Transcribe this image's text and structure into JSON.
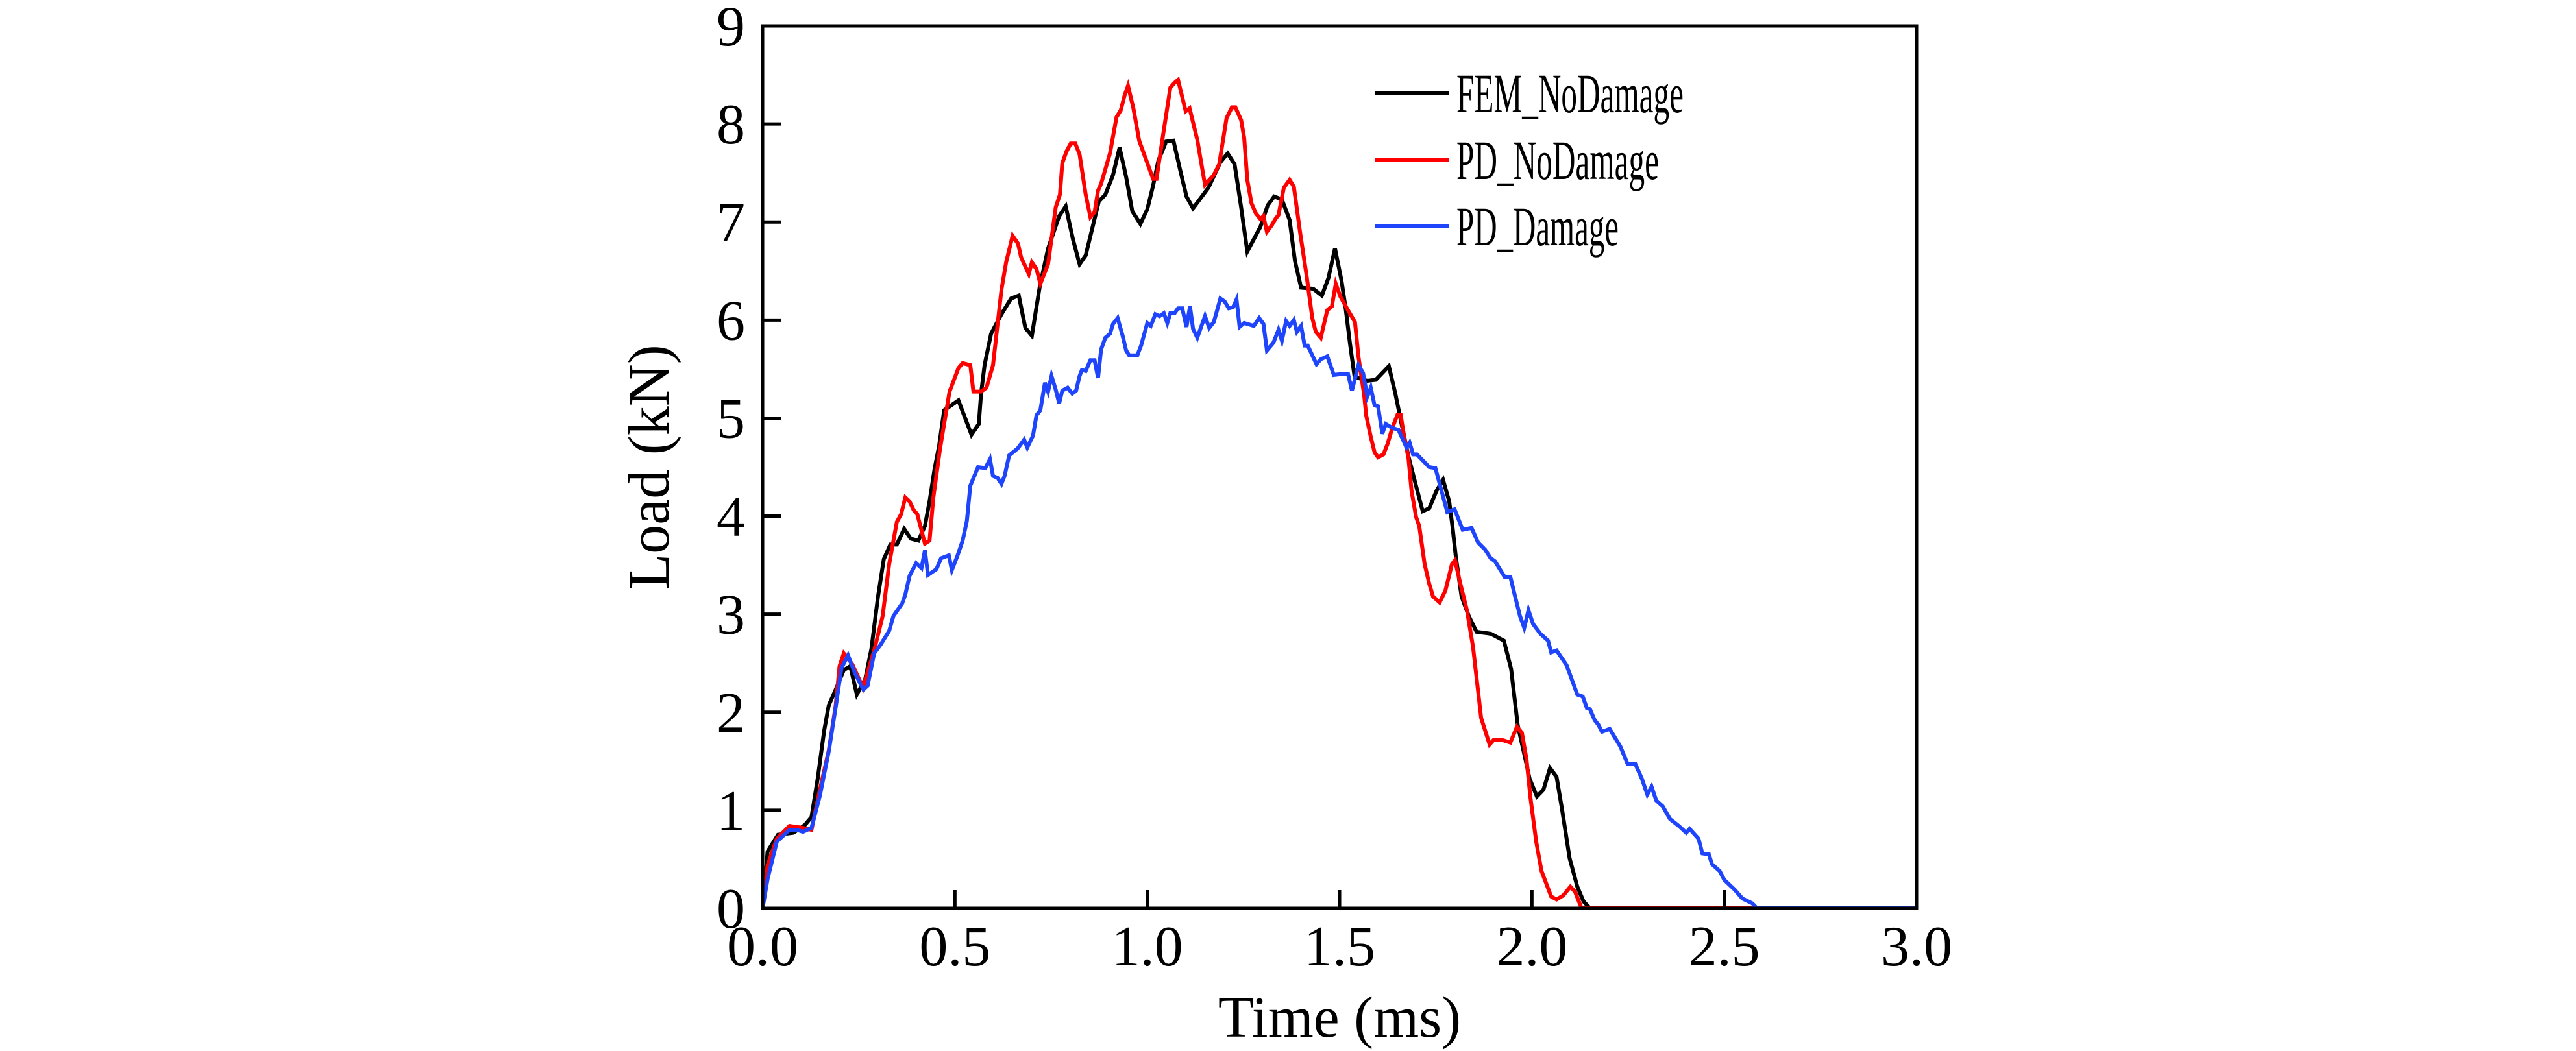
{
  "chart_data": {
    "type": "line",
    "title": "",
    "xlabel": "Time (ms)",
    "ylabel": "Load (kN)",
    "xlim": [
      0,
      3
    ],
    "ylim": [
      0,
      9
    ],
    "xticks": [
      0,
      0.5,
      1.0,
      1.5,
      2.0,
      2.5,
      3.0
    ],
    "xtick_labels": [
      "0.0",
      "0.5",
      "1.0",
      "1.5",
      "2.0",
      "2.5",
      "3.0"
    ],
    "yticks": [
      0,
      1,
      2,
      3,
      4,
      5,
      6,
      7,
      8,
      9
    ],
    "ytick_labels": [
      "0",
      "1",
      "2",
      "3",
      "4",
      "5",
      "6",
      "7",
      "8",
      "9"
    ],
    "grid": false,
    "legend_position": "top-right",
    "series": [
      {
        "name": "FEM_NoDamage",
        "color": "#000000",
        "x": [
          0,
          0.013,
          0.04,
          0.08,
          0.11,
          0.127,
          0.143,
          0.16,
          0.172,
          0.19,
          0.211,
          0.228,
          0.245,
          0.267,
          0.283,
          0.3,
          0.315,
          0.332,
          0.349,
          0.368,
          0.385,
          0.405,
          0.422,
          0.434,
          0.447,
          0.459,
          0.472,
          0.509,
          0.543,
          0.562,
          0.568,
          0.577,
          0.594,
          0.621,
          0.646,
          0.666,
          0.683,
          0.7,
          0.72,
          0.742,
          0.771,
          0.788,
          0.807,
          0.824,
          0.84,
          0.874,
          0.891,
          0.911,
          0.928,
          0.945,
          0.961,
          0.982,
          1.0,
          1.015,
          1.029,
          1.049,
          1.068,
          1.085,
          1.102,
          1.119,
          1.159,
          1.19,
          1.209,
          1.227,
          1.244,
          1.26,
          1.294,
          1.313,
          1.33,
          1.35,
          1.37,
          1.384,
          1.4,
          1.431,
          1.454,
          1.471,
          1.488,
          1.505,
          1.516,
          1.527,
          1.539,
          1.572,
          1.594,
          1.628,
          1.645,
          1.659,
          1.679,
          1.696,
          1.716,
          1.733,
          1.752,
          1.769,
          1.785,
          1.794,
          1.802,
          1.817,
          1.836,
          1.856,
          1.893,
          1.927,
          1.946,
          1.963,
          1.983,
          1.994,
          2.013,
          2.03,
          2.047,
          2.064,
          2.079,
          2.098,
          2.118,
          2.134,
          2.151,
          3.0
        ],
        "y": [
          0,
          0.58,
          0.75,
          0.77,
          0.85,
          0.93,
          1.32,
          1.81,
          2.07,
          2.23,
          2.43,
          2.47,
          2.18,
          2.34,
          2.65,
          3.18,
          3.56,
          3.71,
          3.71,
          3.87,
          3.77,
          3.75,
          3.9,
          4.15,
          4.48,
          4.72,
          5.08,
          5.18,
          4.83,
          4.94,
          5.25,
          5.54,
          5.86,
          6.06,
          6.22,
          6.25,
          5.92,
          5.84,
          6.33,
          6.73,
          7.06,
          7.16,
          6.82,
          6.57,
          6.66,
          7.21,
          7.28,
          7.48,
          7.76,
          7.46,
          7.11,
          6.98,
          7.13,
          7.37,
          7.63,
          7.82,
          7.83,
          7.54,
          7.26,
          7.14,
          7.35,
          7.61,
          7.7,
          7.59,
          7.15,
          6.7,
          6.95,
          7.17,
          7.26,
          7.23,
          7.02,
          6.6,
          6.33,
          6.32,
          6.25,
          6.43,
          6.73,
          6.4,
          6.11,
          5.76,
          5.42,
          5.38,
          5.39,
          5.53,
          5.25,
          4.98,
          4.61,
          4.35,
          4.05,
          4.08,
          4.26,
          4.37,
          4.15,
          3.88,
          3.59,
          3.18,
          2.98,
          2.82,
          2.8,
          2.73,
          2.44,
          1.87,
          1.52,
          1.32,
          1.14,
          1.21,
          1.43,
          1.34,
          0.99,
          0.51,
          0.22,
          0.07,
          0.0,
          0.0
        ]
      },
      {
        "name": "PD_NoDamage",
        "color": "#ff0000",
        "x": [
          0,
          0.013,
          0.037,
          0.07,
          0.105,
          0.127,
          0.149,
          0.172,
          0.19,
          0.2,
          0.211,
          0.233,
          0.261,
          0.29,
          0.312,
          0.329,
          0.349,
          0.36,
          0.371,
          0.382,
          0.393,
          0.402,
          0.422,
          0.434,
          0.444,
          0.461,
          0.486,
          0.509,
          0.52,
          0.54,
          0.548,
          0.568,
          0.582,
          0.599,
          0.621,
          0.633,
          0.65,
          0.664,
          0.672,
          0.692,
          0.7,
          0.712,
          0.722,
          0.742,
          0.762,
          0.773,
          0.779,
          0.79,
          0.801,
          0.813,
          0.824,
          0.84,
          0.852,
          0.863,
          0.872,
          0.88,
          0.903,
          0.92,
          0.931,
          0.941,
          0.95,
          0.964,
          0.979,
          1.004,
          1.015,
          1.024,
          1.043,
          1.06,
          1.071,
          1.08,
          1.1,
          1.11,
          1.13,
          1.15,
          1.173,
          1.187,
          1.206,
          1.22,
          1.229,
          1.244,
          1.252,
          1.26,
          1.271,
          1.282,
          1.294,
          1.302,
          1.311,
          1.324,
          1.333,
          1.341,
          1.355,
          1.37,
          1.381,
          1.397,
          1.414,
          1.429,
          1.438,
          1.451,
          1.468,
          1.48,
          1.49,
          1.502,
          1.522,
          1.54,
          1.549,
          1.564,
          1.569,
          1.581,
          1.591,
          1.6,
          1.614,
          1.625,
          1.637,
          1.65,
          1.659,
          1.667,
          1.679,
          1.687,
          1.699,
          1.707,
          1.721,
          1.733,
          1.743,
          1.76,
          1.775,
          1.792,
          1.8,
          1.814,
          1.831,
          1.847,
          1.868,
          1.89,
          1.901,
          1.92,
          1.944,
          1.961,
          1.974,
          1.986,
          1.996,
          2.011,
          2.025,
          2.05,
          2.064,
          2.081,
          2.1,
          2.112,
          2.129,
          3.0
        ],
        "y": [
          0,
          0.44,
          0.71,
          0.84,
          0.82,
          0.8,
          1.21,
          1.61,
          2.07,
          2.47,
          2.6,
          2.49,
          2.25,
          2.63,
          2.98,
          3.51,
          3.94,
          4.02,
          4.19,
          4.15,
          4.06,
          4.02,
          3.72,
          3.75,
          4.19,
          4.68,
          5.27,
          5.51,
          5.56,
          5.54,
          5.27,
          5.27,
          5.31,
          5.54,
          6.31,
          6.59,
          6.86,
          6.78,
          6.64,
          6.47,
          6.59,
          6.52,
          6.37,
          6.57,
          7.15,
          7.28,
          7.6,
          7.72,
          7.8,
          7.8,
          7.69,
          7.28,
          7.05,
          7.1,
          7.32,
          7.39,
          7.7,
          8.07,
          8.14,
          8.29,
          8.39,
          8.16,
          7.83,
          7.56,
          7.44,
          7.44,
          7.94,
          8.37,
          8.42,
          8.45,
          8.13,
          8.16,
          7.84,
          7.38,
          7.48,
          7.59,
          8.06,
          8.17,
          8.17,
          8.04,
          7.86,
          7.43,
          7.19,
          7.09,
          7.03,
          7.06,
          6.9,
          6.97,
          7.03,
          7.07,
          7.35,
          7.43,
          7.36,
          6.9,
          6.46,
          6.02,
          5.88,
          5.82,
          6.1,
          6.14,
          6.37,
          6.24,
          6.1,
          5.98,
          5.63,
          5.23,
          5.03,
          4.81,
          4.65,
          4.6,
          4.63,
          4.74,
          4.9,
          5.03,
          5.03,
          4.83,
          4.59,
          4.26,
          3.99,
          3.9,
          3.51,
          3.31,
          3.18,
          3.12,
          3.24,
          3.51,
          3.55,
          3.31,
          3.04,
          2.66,
          1.94,
          1.67,
          1.72,
          1.72,
          1.69,
          1.85,
          1.79,
          1.52,
          1.13,
          0.68,
          0.38,
          0.12,
          0.09,
          0.13,
          0.22,
          0.17,
          0.0,
          0.0
        ]
      },
      {
        "name": "PD_Damage",
        "color": "#1f45fc",
        "x": [
          0,
          0.013,
          0.037,
          0.07,
          0.09,
          0.105,
          0.127,
          0.149,
          0.172,
          0.19,
          0.205,
          0.222,
          0.24,
          0.262,
          0.273,
          0.29,
          0.307,
          0.329,
          0.34,
          0.363,
          0.371,
          0.382,
          0.399,
          0.413,
          0.422,
          0.43,
          0.452,
          0.464,
          0.484,
          0.492,
          0.506,
          0.52,
          0.531,
          0.54,
          0.56,
          0.579,
          0.591,
          0.599,
          0.611,
          0.621,
          0.629,
          0.641,
          0.663,
          0.68,
          0.688,
          0.703,
          0.712,
          0.722,
          0.734,
          0.742,
          0.751,
          0.762,
          0.771,
          0.779,
          0.793,
          0.805,
          0.815,
          0.824,
          0.83,
          0.84,
          0.852,
          0.863,
          0.872,
          0.88,
          0.891,
          0.903,
          0.911,
          0.923,
          0.936,
          0.945,
          0.953,
          0.974,
          0.984,
          1.0,
          1.009,
          1.021,
          1.032,
          1.043,
          1.052,
          1.06,
          1.071,
          1.08,
          1.091,
          1.102,
          1.111,
          1.119,
          1.13,
          1.15,
          1.161,
          1.173,
          1.19,
          1.201,
          1.212,
          1.223,
          1.232,
          1.24,
          1.252,
          1.277,
          1.291,
          1.302,
          1.311,
          1.328,
          1.341,
          1.35,
          1.361,
          1.37,
          1.381,
          1.389,
          1.4,
          1.409,
          1.417,
          1.44,
          1.451,
          1.468,
          1.485,
          1.507,
          1.522,
          1.532,
          1.549,
          1.561,
          1.572,
          1.581,
          1.591,
          1.6,
          1.611,
          1.62,
          1.637,
          1.653,
          1.674,
          1.682,
          1.691,
          1.701,
          1.733,
          1.749,
          1.78,
          1.799,
          1.82,
          1.843,
          1.86,
          1.878,
          1.893,
          1.904,
          1.929,
          1.944,
          1.955,
          1.969,
          1.98,
          1.991,
          2.003,
          2.022,
          2.042,
          2.05,
          2.064,
          2.09,
          2.118,
          2.132,
          2.143,
          2.151,
          2.163,
          2.173,
          2.182,
          2.202,
          2.23,
          2.249,
          2.269,
          2.286,
          2.3,
          2.311,
          2.323,
          2.34,
          2.359,
          2.382,
          2.401,
          2.41,
          2.433,
          2.443,
          2.46,
          2.468,
          2.488,
          2.5,
          2.527,
          2.547,
          2.573,
          2.585,
          3.0
        ],
        "y": [
          0,
          0.3,
          0.68,
          0.8,
          0.8,
          0.78,
          0.82,
          1.15,
          1.6,
          2.05,
          2.45,
          2.58,
          2.4,
          2.23,
          2.27,
          2.6,
          2.69,
          2.83,
          2.98,
          3.11,
          3.2,
          3.39,
          3.52,
          3.47,
          3.65,
          3.4,
          3.46,
          3.57,
          3.6,
          3.45,
          3.59,
          3.75,
          3.95,
          4.31,
          4.5,
          4.49,
          4.58,
          4.41,
          4.39,
          4.33,
          4.41,
          4.62,
          4.69,
          4.78,
          4.7,
          4.82,
          5.03,
          5.08,
          5.36,
          5.27,
          5.43,
          5.29,
          5.15,
          5.28,
          5.31,
          5.25,
          5.28,
          5.43,
          5.49,
          5.48,
          5.59,
          5.59,
          5.41,
          5.7,
          5.82,
          5.86,
          5.96,
          6.02,
          5.84,
          5.69,
          5.64,
          5.64,
          5.74,
          5.97,
          5.94,
          6.06,
          6.04,
          6.07,
          5.97,
          6.07,
          6.07,
          6.12,
          6.12,
          5.93,
          6.14,
          5.91,
          5.82,
          6.04,
          5.92,
          5.98,
          6.22,
          6.19,
          6.12,
          6.13,
          6.21,
          5.93,
          5.97,
          5.94,
          6.02,
          5.96,
          5.69,
          5.77,
          5.9,
          5.79,
          5.99,
          5.94,
          6.0,
          5.88,
          5.94,
          5.74,
          5.74,
          5.55,
          5.6,
          5.63,
          5.44,
          5.45,
          5.45,
          5.28,
          5.54,
          5.46,
          5.22,
          5.31,
          5.13,
          5.12,
          4.84,
          4.94,
          4.9,
          4.88,
          4.7,
          4.75,
          4.63,
          4.63,
          4.5,
          4.49,
          4.04,
          4.07,
          3.86,
          3.88,
          3.73,
          3.66,
          3.57,
          3.54,
          3.38,
          3.38,
          3.2,
          2.98,
          2.86,
          3.04,
          2.9,
          2.8,
          2.73,
          2.61,
          2.63,
          2.48,
          2.18,
          2.16,
          2.04,
          2.03,
          1.92,
          1.87,
          1.8,
          1.83,
          1.65,
          1.47,
          1.47,
          1.32,
          1.16,
          1.24,
          1.1,
          1.04,
          0.91,
          0.84,
          0.77,
          0.81,
          0.71,
          0.56,
          0.55,
          0.45,
          0.38,
          0.29,
          0.19,
          0.1,
          0.05,
          0.0,
          0.0
        ]
      }
    ]
  }
}
